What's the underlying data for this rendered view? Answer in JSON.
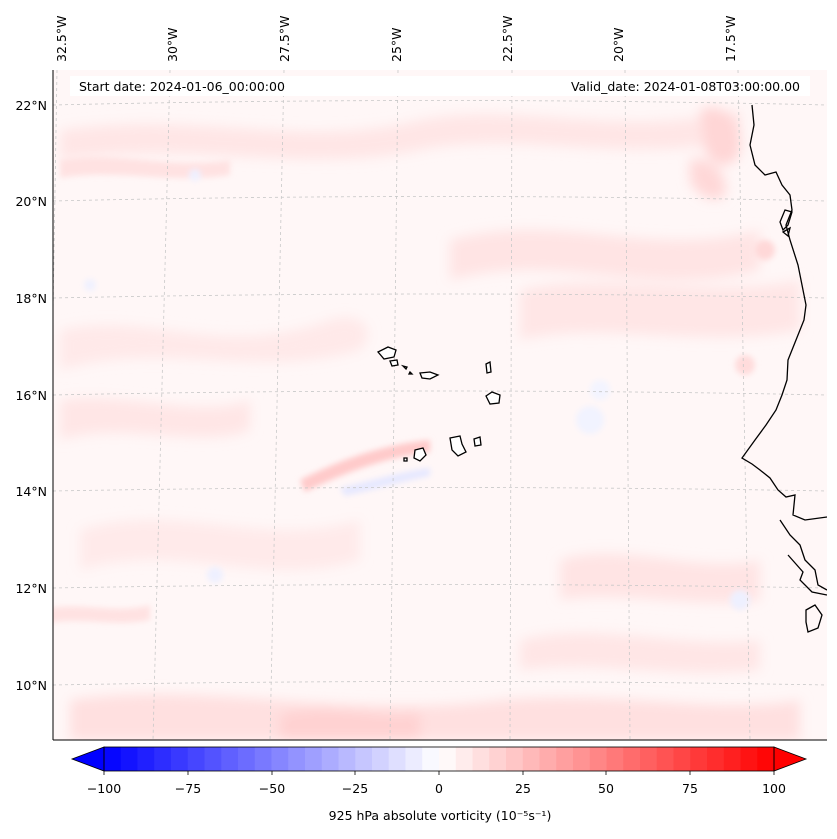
{
  "header": {
    "start_date": "Start date: 2024-01-06_00:00:00",
    "valid_date": "Valid_date: 2024-01-08T03:00:00.00"
  },
  "map": {
    "lon_labels": [
      "32.5°W",
      "30°W",
      "27.5°W",
      "25°W",
      "22.5°W",
      "20°W",
      "17.5°W"
    ],
    "lat_labels": [
      "22°N",
      "20°N",
      "18°N",
      "16°N",
      "14°N",
      "12°N",
      "10°N"
    ],
    "colors": {
      "land_outline": "#000000",
      "gridline": "#c8c8c8",
      "background": "#fff6f6"
    }
  },
  "colorbar": {
    "ticks": [
      "−100",
      "−75",
      "−50",
      "−25",
      "0",
      "25",
      "50",
      "75",
      "100"
    ],
    "label": "925 hPa absolute vorticity (10⁻⁵s⁻¹)",
    "min": -100,
    "max": 100,
    "colormap": "bwr",
    "colors": {
      "min": "#0000ff",
      "mid": "#ffffff",
      "max": "#ff0000"
    }
  }
}
